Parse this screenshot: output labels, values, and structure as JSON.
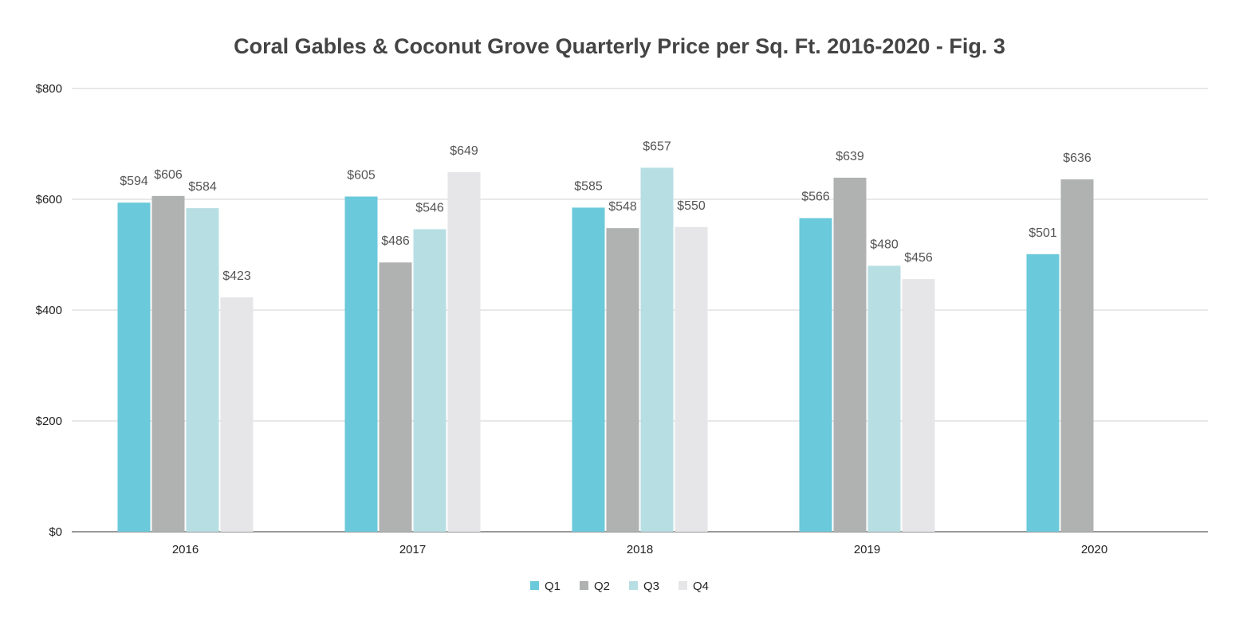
{
  "chart_data": {
    "type": "bar",
    "title": "Coral Gables & Coconut Grove Quarterly Price per Sq. Ft. 2016-2020 - Fig. 3",
    "xlabel": "",
    "ylabel": "",
    "ylim": [
      0,
      800
    ],
    "yticks": [
      0,
      200,
      400,
      600,
      800
    ],
    "ytick_labels": [
      "$0",
      "$200",
      "$400",
      "$600",
      "$800"
    ],
    "grid": true,
    "legend": "bottom",
    "categories": [
      "2016",
      "2017",
      "2018",
      "2019",
      "2020"
    ],
    "series": [
      {
        "name": "Q1",
        "color": "#6ac9da",
        "values": [
          594,
          605,
          585,
          566,
          501
        ],
        "labels": [
          "$594",
          "$605",
          "$585",
          "$566",
          "$501"
        ]
      },
      {
        "name": "Q2",
        "color": "#b0b2b1",
        "values": [
          606,
          486,
          548,
          639,
          636
        ],
        "labels": [
          "$606",
          "$486",
          "$548",
          "$639",
          "$636"
        ]
      },
      {
        "name": "Q3",
        "color": "#b7dfe3",
        "values": [
          584,
          546,
          657,
          480,
          null
        ],
        "labels": [
          "$584",
          "$546",
          "$657",
          "$480",
          null
        ]
      },
      {
        "name": "Q4",
        "color": "#e6e6e8",
        "values": [
          423,
          649,
          550,
          456,
          null
        ],
        "labels": [
          "$423",
          "$649",
          "$550",
          "$456",
          null
        ]
      }
    ]
  }
}
